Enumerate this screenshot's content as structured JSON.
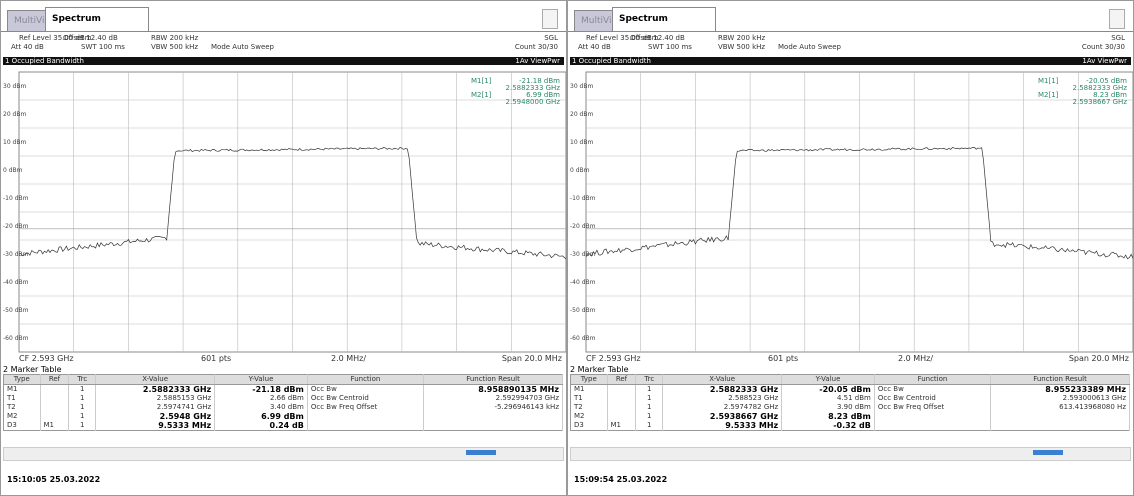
{
  "panels": [
    {
      "tabs": [
        "MultiView",
        "Spectrum"
      ],
      "header": {
        "line1": [
          "Ref Level 35.00 dBm",
          "Offset 12.40 dB",
          "RBW 200 kHz",
          "SGL"
        ],
        "line2": [
          "Att 40 dB",
          "SWT 100 ms",
          "VBW 500 kHz",
          "Mode Auto Sweep",
          "Count 30/30"
        ]
      },
      "band": {
        "title": "1 Occupied Bandwidth",
        "trace": "1Av ViewPwr"
      },
      "markers": [
        {
          "name": "M1[1]",
          "level": "-21.18 dBm",
          "freq": "2.5882333 GHz"
        },
        {
          "name": "M2[1]",
          "level": "6.99 dBm",
          "freq": "2.5948000 GHz"
        }
      ],
      "y_labels": [
        "30 dBm",
        "20 dBm",
        "10 dBm",
        "0 dBm",
        "-10 dBm",
        "-20 dBm",
        "-30 dBm",
        "-40 dBm",
        "-50 dBm",
        "-60 dBm"
      ],
      "footer": [
        "CF 2.593 GHz",
        "601 pts",
        "2.0 MHz/",
        "Span 20.0 MHz"
      ],
      "marker_table": {
        "title": "2 Marker Table",
        "columns": [
          "Type",
          "Ref",
          "Trc",
          "X-Value",
          "Y-Value",
          "Function",
          "Function Result"
        ],
        "rows": [
          [
            "M1",
            "",
            "1",
            "2.5882333 GHz",
            "-21.18 dBm",
            "Occ Bw",
            "8.958890135 MHz"
          ],
          [
            "T1",
            "",
            "1",
            "2.5885153 GHz",
            "2.66 dBm",
            "Occ Bw Centroid",
            "2.592994703 GHz"
          ],
          [
            "T2",
            "",
            "1",
            "2.5974741 GHz",
            "3.40 dBm",
            "Occ Bw Freq Offset",
            "-5.296946143 kHz"
          ],
          [
            "M2",
            "",
            "1",
            "2.5948 GHz",
            "6.99 dBm",
            "",
            ""
          ],
          [
            "D3",
            "M1",
            "1",
            "9.5333 MHz",
            "0.24 dB",
            "",
            ""
          ]
        ]
      },
      "timestamp": "15:10:05 25.03.2022"
    },
    {
      "tabs": [
        "MultiView",
        "Spectrum"
      ],
      "header": {
        "line1": [
          "Ref Level 35.00 dBm",
          "Offset 12.40 dB",
          "RBW 200 kHz",
          "SGL"
        ],
        "line2": [
          "Att 40 dB",
          "SWT 100 ms",
          "VBW 500 kHz",
          "Mode Auto Sweep",
          "Count 30/30"
        ]
      },
      "band": {
        "title": "1 Occupied Bandwidth",
        "trace": "1Av ViewPwr"
      },
      "markers": [
        {
          "name": "M1[1]",
          "level": "-20.05 dBm",
          "freq": "2.5882333 GHz"
        },
        {
          "name": "M2[1]",
          "level": "8.23 dBm",
          "freq": "2.5938667 GHz"
        }
      ],
      "y_labels": [
        "30 dBm",
        "20 dBm",
        "10 dBm",
        "0 dBm",
        "-10 dBm",
        "-20 dBm",
        "-30 dBm",
        "-40 dBm",
        "-50 dBm",
        "-60 dBm"
      ],
      "footer": [
        "CF 2.593 GHz",
        "601 pts",
        "2.0 MHz/",
        "Span 20.0 MHz"
      ],
      "marker_table": {
        "title": "2 Marker Table",
        "columns": [
          "Type",
          "Ref",
          "Trc",
          "X-Value",
          "Y-Value",
          "Function",
          "Function Result"
        ],
        "rows": [
          [
            "M1",
            "",
            "1",
            "2.5882333 GHz",
            "-20.05 dBm",
            "Occ Bw",
            "8.955233389 MHz"
          ],
          [
            "T1",
            "",
            "1",
            "2.588523 GHz",
            "4.51 dBm",
            "Occ Bw Centroid",
            "2.593000613 GHz"
          ],
          [
            "T2",
            "",
            "1",
            "2.5974782 GHz",
            "3.90 dBm",
            "Occ Bw Freq Offset",
            "613.413968080 Hz"
          ],
          [
            "M2",
            "",
            "1",
            "2.5938667 GHz",
            "8.23 dBm",
            "",
            ""
          ],
          [
            "D3",
            "M1",
            "1",
            "9.5333 MHz",
            "-0.32 dB",
            "",
            ""
          ]
        ]
      },
      "timestamp": "15:09:54 25.03.2022"
    }
  ]
}
